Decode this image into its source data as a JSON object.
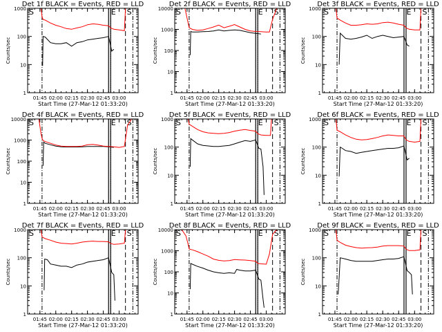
{
  "figure": {
    "xlabel": "Start Time (27-Mar-12 01:33:20)",
    "ylabel": "Counts/sec",
    "x_start": "01:33:20",
    "x_end": "03:18:00",
    "x_ticks": [
      "01:45",
      "02:00",
      "02:15",
      "02:30",
      "02:45",
      "03:00"
    ],
    "colors": {
      "events": "#000000",
      "lld": "#ff0000"
    },
    "markers": [
      {
        "label": "S",
        "time": "01:33:20",
        "style": "none"
      },
      {
        "label": "",
        "time": "01:47:00",
        "style": "dash-dot"
      },
      {
        "label": "E",
        "time": "02:51:00",
        "style": "solid"
      },
      {
        "label": "",
        "time": "02:52:00",
        "style": "dotted"
      },
      {
        "label": "S",
        "time": "03:06:00",
        "style": "dashed"
      },
      {
        "label": "",
        "time": "03:13:00",
        "style": "dash-dot"
      }
    ]
  },
  "chart_data": [
    {
      "type": "line",
      "title": "Det 1f BLACK = Events, RED = LLD",
      "ylim": [
        1,
        1000
      ],
      "yscale": "log",
      "y_ticks": [
        "1",
        "10",
        "100",
        "1000"
      ],
      "series": [
        {
          "name": "Events",
          "color": "#000000",
          "x": [
            "01:47:30",
            "01:48",
            "01:50",
            "01:55",
            "02:00",
            "02:05",
            "02:10",
            "02:15",
            "02:20",
            "02:25",
            "02:30",
            "02:35",
            "02:40",
            "02:45",
            "02:50",
            "02:53",
            "02:55"
          ],
          "y": [
            9,
            100,
            95,
            60,
            55,
            55,
            60,
            45,
            60,
            65,
            75,
            80,
            85,
            90,
            100,
            30,
            35
          ]
        },
        {
          "name": "LLD",
          "color": "#ff0000",
          "x": [
            "01:46",
            "01:47",
            "01:48",
            "01:50",
            "01:55",
            "02:00",
            "02:05",
            "02:10",
            "02:15",
            "02:20",
            "02:25",
            "02:30",
            "02:35",
            "02:40",
            "02:45",
            "02:50",
            "02:52",
            "02:55",
            "03:00",
            "03:05",
            "03:06"
          ],
          "y": [
            1000,
            500,
            400,
            380,
            300,
            250,
            220,
            190,
            180,
            200,
            220,
            260,
            280,
            270,
            250,
            240,
            200,
            180,
            170,
            160,
            1000
          ]
        }
      ]
    },
    {
      "type": "line",
      "title": "Det 2f BLACK = Events, RED = LLD",
      "ylim": [
        1,
        10000
      ],
      "yscale": "log",
      "y_ticks": [
        "1",
        "10",
        "100",
        "1000",
        "10000"
      ],
      "series": [
        {
          "name": "Events",
          "color": "#000000",
          "x": [
            "01:48",
            "01:48:30",
            "01:50",
            "01:55",
            "02:00",
            "02:05",
            "02:10",
            "02:15",
            "02:20",
            "02:25",
            "02:30",
            "02:35",
            "02:40",
            "02:45",
            "02:50",
            "02:53",
            "02:55"
          ],
          "y": [
            60,
            800,
            750,
            750,
            780,
            800,
            850,
            950,
            850,
            900,
            950,
            900,
            800,
            700,
            650,
            620,
            600
          ]
        },
        {
          "name": "LLD",
          "color": "#ff0000",
          "x": [
            "01:43",
            "01:46",
            "01:47",
            "01:50",
            "01:55",
            "02:00",
            "02:05",
            "02:10",
            "02:15",
            "02:20",
            "02:25",
            "02:30",
            "02:35",
            "02:40",
            "02:45",
            "02:50",
            "02:55",
            "03:00",
            "03:03",
            "03:06",
            "03:10"
          ],
          "y": [
            10000,
            2000,
            1200,
            1000,
            900,
            950,
            1100,
            1300,
            1600,
            1200,
            1400,
            1700,
            1300,
            1000,
            850,
            800,
            780,
            750,
            750,
            3000,
            10000
          ]
        }
      ]
    },
    {
      "type": "line",
      "title": "Det 3f BLACK = Events, RED = LLD",
      "ylim": [
        1,
        1000
      ],
      "yscale": "log",
      "y_ticks": [
        "1",
        "10",
        "100",
        "1000"
      ],
      "series": [
        {
          "name": "Events",
          "color": "#000000",
          "x": [
            "01:49",
            "01:50",
            "01:52",
            "01:55",
            "02:00",
            "02:05",
            "02:10",
            "02:15",
            "02:20",
            "02:25",
            "02:30",
            "02:35",
            "02:40",
            "02:45",
            "02:50",
            "02:53",
            "02:55"
          ],
          "y": [
            10,
            130,
            110,
            85,
            80,
            85,
            95,
            110,
            85,
            100,
            110,
            100,
            90,
            95,
            100,
            50,
            45
          ]
        },
        {
          "name": "LLD",
          "color": "#ff0000",
          "x": [
            "01:46",
            "01:47",
            "01:50",
            "01:55",
            "02:00",
            "02:05",
            "02:10",
            "02:15",
            "02:20",
            "02:25",
            "02:30",
            "02:35",
            "02:40",
            "02:45",
            "02:50",
            "02:52",
            "02:55",
            "03:00",
            "03:05",
            "03:06"
          ],
          "y": [
            1000,
            450,
            380,
            300,
            250,
            250,
            260,
            280,
            270,
            280,
            310,
            320,
            300,
            270,
            250,
            200,
            180,
            170,
            170,
            1000
          ]
        }
      ]
    },
    {
      "type": "line",
      "title": "Det 4f BLACK = Events, RED = LLD",
      "ylim": [
        1,
        10000
      ],
      "yscale": "log",
      "y_ticks": [
        "1",
        "10",
        "100",
        "1000",
        "10000"
      ],
      "series": [
        {
          "name": "Events",
          "color": "#000000",
          "x": [
            "01:48",
            "01:48:30",
            "01:50",
            "01:55",
            "02:00",
            "02:05",
            "02:10",
            "02:15",
            "02:20",
            "02:25",
            "02:30",
            "02:35",
            "02:40",
            "02:45",
            "02:50",
            "02:53",
            "02:55"
          ],
          "y": [
            60,
            800,
            700,
            600,
            520,
            480,
            470,
            470,
            470,
            480,
            500,
            500,
            500,
            500,
            480,
            460,
            450
          ]
        },
        {
          "name": "LLD",
          "color": "#ff0000",
          "x": [
            "01:44",
            "01:46",
            "01:47",
            "01:48",
            "01:50",
            "01:55",
            "02:00",
            "02:05",
            "02:10",
            "02:15",
            "02:20",
            "02:25",
            "02:30",
            "02:35",
            "02:40",
            "02:45",
            "02:50",
            "02:55",
            "03:00",
            "03:05",
            "03:08",
            "03:12"
          ],
          "y": [
            10000,
            2000,
            1200,
            950,
            850,
            700,
            580,
            520,
            500,
            500,
            500,
            520,
            600,
            620,
            580,
            520,
            500,
            480,
            450,
            500,
            5000,
            10000
          ]
        }
      ]
    },
    {
      "type": "line",
      "title": "Det 5f BLACK = Events, RED = LLD",
      "ylim": [
        1,
        1000
      ],
      "yscale": "log",
      "y_ticks": [
        "1",
        "10",
        "100",
        "1000"
      ],
      "series": [
        {
          "name": "Events",
          "color": "#000000",
          "x": [
            "01:48",
            "01:48:30",
            "01:50",
            "01:55",
            "02:00",
            "02:05",
            "02:10",
            "02:15",
            "02:20",
            "02:25",
            "02:30",
            "02:35",
            "02:40",
            "02:45",
            "02:50",
            "02:53",
            "02:55",
            "02:57",
            "02:58"
          ],
          "y": [
            20,
            200,
            180,
            130,
            115,
            110,
            105,
            105,
            110,
            115,
            130,
            150,
            170,
            160,
            180,
            90,
            85,
            20,
            2
          ]
        },
        {
          "name": "LLD",
          "color": "#ff0000",
          "x": [
            "01:46",
            "01:47",
            "01:50",
            "01:55",
            "02:00",
            "02:05",
            "02:10",
            "02:15",
            "02:20",
            "02:25",
            "02:30",
            "02:35",
            "02:40",
            "02:45",
            "02:50",
            "02:52",
            "02:55",
            "03:00",
            "03:04",
            "03:05"
          ],
          "y": [
            1000,
            650,
            550,
            420,
            350,
            320,
            310,
            300,
            310,
            330,
            370,
            400,
            420,
            390,
            370,
            300,
            270,
            260,
            260,
            1000
          ]
        }
      ]
    },
    {
      "type": "line",
      "title": "Det 6f BLACK = Events, RED = LLD",
      "ylim": [
        1,
        1000
      ],
      "yscale": "log",
      "y_ticks": [
        "1",
        "10",
        "100",
        "1000"
      ],
      "series": [
        {
          "name": "Events",
          "color": "#000000",
          "x": [
            "01:49",
            "01:50",
            "01:52",
            "01:55",
            "02:00",
            "02:05",
            "02:10",
            "02:15",
            "02:20",
            "02:25",
            "02:30",
            "02:35",
            "02:40",
            "02:45",
            "02:50",
            "02:53",
            "02:55"
          ],
          "y": [
            9,
            100,
            90,
            75,
            70,
            60,
            65,
            70,
            75,
            80,
            85,
            90,
            90,
            95,
            110,
            35,
            40
          ]
        },
        {
          "name": "LLD",
          "color": "#ff0000",
          "x": [
            "01:46",
            "01:47",
            "01:50",
            "01:55",
            "02:00",
            "02:05",
            "02:10",
            "02:15",
            "02:20",
            "02:25",
            "02:30",
            "02:35",
            "02:40",
            "02:45",
            "02:50",
            "02:52",
            "02:55",
            "03:00",
            "03:05",
            "03:06"
          ],
          "y": [
            1000,
            400,
            350,
            270,
            220,
            190,
            180,
            185,
            200,
            220,
            250,
            270,
            260,
            250,
            250,
            180,
            160,
            150,
            160,
            1000
          ]
        }
      ]
    },
    {
      "type": "line",
      "title": "Det 7f BLACK = Events, RED = LLD",
      "ylim": [
        1,
        1000
      ],
      "yscale": "log",
      "y_ticks": [
        "1",
        "10",
        "100",
        "1000"
      ],
      "series": [
        {
          "name": "Events",
          "color": "#000000",
          "x": [
            "01:49",
            "01:49:30",
            "01:52",
            "01:55",
            "02:00",
            "02:05",
            "02:10",
            "02:15",
            "02:20",
            "02:25",
            "02:30",
            "02:35",
            "02:40",
            "02:45",
            "02:50",
            "02:53",
            "02:55",
            "02:56"
          ],
          "y": [
            7,
            90,
            85,
            60,
            55,
            50,
            50,
            45,
            55,
            60,
            70,
            75,
            80,
            85,
            100,
            30,
            25,
            3
          ]
        },
        {
          "name": "LLD",
          "color": "#ff0000",
          "x": [
            "01:46",
            "01:47",
            "01:50",
            "01:55",
            "02:00",
            "02:05",
            "02:10",
            "02:15",
            "02:20",
            "02:25",
            "02:30",
            "02:35",
            "02:40",
            "02:45",
            "02:50",
            "02:52",
            "02:55",
            "03:00",
            "03:05",
            "03:06"
          ],
          "y": [
            1000,
            550,
            480,
            420,
            360,
            330,
            320,
            310,
            330,
            360,
            380,
            390,
            380,
            380,
            370,
            320,
            300,
            310,
            330,
            1000
          ]
        }
      ]
    },
    {
      "type": "line",
      "title": "Det 8f BLACK = Events, RED = LLD",
      "ylim": [
        1,
        10000
      ],
      "yscale": "log",
      "y_ticks": [
        "1",
        "10",
        "100",
        "1000",
        "10000"
      ],
      "series": [
        {
          "name": "Events",
          "color": "#000000",
          "x": [
            "01:48",
            "01:48:30",
            "01:50",
            "01:55",
            "02:00",
            "02:05",
            "02:10",
            "02:15",
            "02:20",
            "02:25",
            "02:30",
            "02:32",
            "02:35",
            "02:40",
            "02:45",
            "02:50",
            "02:53",
            "02:55",
            "02:57",
            "02:58"
          ],
          "y": [
            15,
            250,
            230,
            180,
            150,
            120,
            100,
            90,
            85,
            90,
            85,
            130,
            120,
            110,
            110,
            120,
            45,
            40,
            5,
            2
          ]
        },
        {
          "name": "LLD",
          "color": "#ff0000",
          "x": [
            "01:40",
            "01:44",
            "01:46",
            "01:47",
            "01:50",
            "01:55",
            "02:00",
            "02:05",
            "02:10",
            "02:15",
            "02:20",
            "02:25",
            "02:30",
            "02:35",
            "02:40",
            "02:45",
            "02:50",
            "02:52",
            "02:55",
            "03:00",
            "03:03",
            "03:06",
            "03:10"
          ],
          "y": [
            10000,
            5000,
            2000,
            1200,
            1100,
            900,
            700,
            550,
            400,
            350,
            330,
            340,
            380,
            370,
            360,
            340,
            320,
            250,
            240,
            230,
            700,
            6000,
            10000
          ]
        }
      ]
    },
    {
      "type": "line",
      "title": "Det 9f BLACK = Events, RED = LLD",
      "ylim": [
        1,
        1000
      ],
      "yscale": "log",
      "y_ticks": [
        "1",
        "10",
        "100",
        "1000"
      ],
      "series": [
        {
          "name": "Events",
          "color": "#000000",
          "x": [
            "01:48",
            "01:49",
            "01:50",
            "01:55",
            "02:00",
            "02:05",
            "02:10",
            "02:15",
            "02:20",
            "02:25",
            "02:30",
            "02:35",
            "02:40",
            "02:45",
            "02:50",
            "02:53",
            "02:55",
            "02:57",
            "02:58"
          ],
          "y": [
            5,
            20,
            100,
            90,
            80,
            75,
            75,
            75,
            75,
            80,
            85,
            90,
            90,
            95,
            110,
            35,
            30,
            25,
            5
          ]
        },
        {
          "name": "LLD",
          "color": "#ff0000",
          "x": [
            "01:46",
            "01:47",
            "01:50",
            "01:55",
            "02:00",
            "02:05",
            "02:10",
            "02:15",
            "02:20",
            "02:25",
            "02:30",
            "02:35",
            "02:40",
            "02:45",
            "02:50",
            "02:52",
            "02:55",
            "03:00",
            "03:05",
            "03:06"
          ],
          "y": [
            1000,
            420,
            350,
            280,
            250,
            230,
            220,
            225,
            230,
            240,
            260,
            270,
            270,
            270,
            260,
            200,
            180,
            180,
            190,
            1000
          ]
        }
      ]
    }
  ]
}
